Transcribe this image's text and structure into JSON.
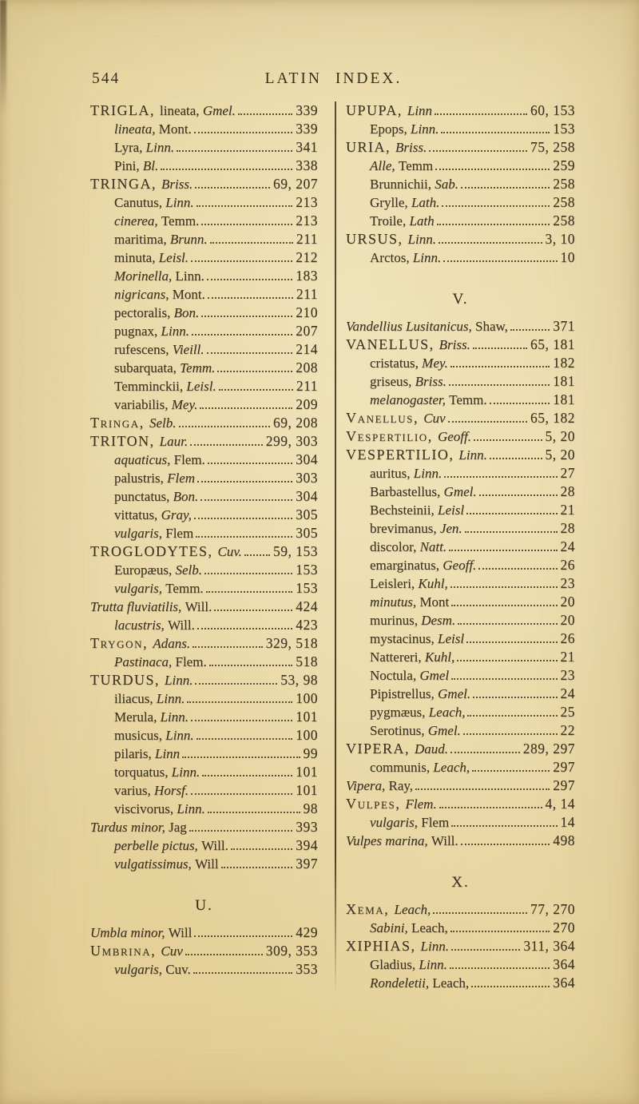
{
  "header": {
    "page_number": "544",
    "title": "LATIN INDEX."
  },
  "colors": {
    "paper": "#e9d8a6",
    "ink": "#3e3322",
    "divider": "#4c3d24"
  },
  "columns": {
    "left": [
      {
        "p": [
          [
            "TRIGLA, ",
            "c"
          ],
          [
            "lineata, ",
            "r"
          ],
          [
            "Gmel.",
            "i"
          ]
        ],
        "g": "339",
        "y": 0
      },
      {
        "p": [
          [
            "lineata, ",
            "i"
          ],
          [
            "Mont.",
            "r"
          ]
        ],
        "g": "339",
        "y": 1
      },
      {
        "p": [
          [
            "Lyra, ",
            "r"
          ],
          [
            "Linn.",
            "i"
          ]
        ],
        "g": "341",
        "y": 1
      },
      {
        "p": [
          [
            "Pini, ",
            "r"
          ],
          [
            "Bl.",
            "i"
          ]
        ],
        "g": "338",
        "y": 1
      },
      {
        "p": [
          [
            "TRINGA, ",
            "c"
          ],
          [
            "Briss.",
            "i"
          ]
        ],
        "g": "69, 207",
        "y": 0
      },
      {
        "p": [
          [
            "Canutus, ",
            "r"
          ],
          [
            "Linn.",
            "i"
          ]
        ],
        "g": "213",
        "y": 1
      },
      {
        "p": [
          [
            "cinerea, ",
            "i"
          ],
          [
            "Temm.",
            "r"
          ]
        ],
        "g": "213",
        "y": 1
      },
      {
        "p": [
          [
            "maritima, ",
            "r"
          ],
          [
            "Brunn.",
            "i"
          ]
        ],
        "g": "211",
        "y": 1
      },
      {
        "p": [
          [
            "minuta, ",
            "r"
          ],
          [
            "Leisl.",
            "i"
          ]
        ],
        "g": "212",
        "y": 1
      },
      {
        "p": [
          [
            "Morinella, ",
            "i"
          ],
          [
            "Linn.",
            "r"
          ]
        ],
        "g": "183",
        "y": 1
      },
      {
        "p": [
          [
            "nigricans, ",
            "i"
          ],
          [
            "Mont.",
            "r"
          ]
        ],
        "g": "211",
        "y": 1
      },
      {
        "p": [
          [
            "pectoralis, ",
            "r"
          ],
          [
            "Bon.",
            "i"
          ]
        ],
        "g": "210",
        "y": 1
      },
      {
        "p": [
          [
            "pugnax, ",
            "r"
          ],
          [
            "Linn.",
            "i"
          ]
        ],
        "g": "207",
        "y": 1
      },
      {
        "p": [
          [
            "rufescens, ",
            "r"
          ],
          [
            "Vieill.",
            "i"
          ]
        ],
        "g": "214",
        "y": 1
      },
      {
        "p": [
          [
            "subarquata, ",
            "r"
          ],
          [
            "Temm.",
            "i"
          ]
        ],
        "g": "208",
        "y": 1
      },
      {
        "p": [
          [
            "Temminckii, ",
            "r"
          ],
          [
            "Leisl.",
            "i"
          ]
        ],
        "g": "211",
        "y": 1
      },
      {
        "p": [
          [
            "variabilis, ",
            "r"
          ],
          [
            "Mey.",
            "i"
          ]
        ],
        "g": "209",
        "y": 1
      },
      {
        "p": [
          [
            "Tringa, ",
            "sc"
          ],
          [
            "Selb.",
            "i"
          ]
        ],
        "g": "69, 208",
        "y": 0
      },
      {
        "p": [
          [
            "TRITON, ",
            "c"
          ],
          [
            "Laur.",
            "i"
          ]
        ],
        "g": "299, 303",
        "y": 0
      },
      {
        "p": [
          [
            "aquaticus, ",
            "i"
          ],
          [
            "Flem.",
            "r"
          ]
        ],
        "g": "304",
        "y": 1
      },
      {
        "p": [
          [
            "palustris, ",
            "r"
          ],
          [
            "Flem",
            "i"
          ]
        ],
        "g": "303",
        "y": 1
      },
      {
        "p": [
          [
            "punctatus, ",
            "r"
          ],
          [
            "Bon.",
            "i"
          ]
        ],
        "g": "304",
        "y": 1
      },
      {
        "p": [
          [
            "vittatus, ",
            "r"
          ],
          [
            "Gray,",
            "i"
          ]
        ],
        "g": "305",
        "y": 1
      },
      {
        "p": [
          [
            "vulgaris, ",
            "i"
          ],
          [
            "Flem",
            "r"
          ]
        ],
        "g": "305",
        "y": 1
      },
      {
        "p": [
          [
            "TROGLODYTES, ",
            "c"
          ],
          [
            "Cuv.",
            "i"
          ]
        ],
        "g": "59, 153",
        "y": 0
      },
      {
        "p": [
          [
            "Europæus, ",
            "r"
          ],
          [
            "Selb.",
            "i"
          ]
        ],
        "g": "153",
        "y": 1
      },
      {
        "p": [
          [
            "vulgaris, ",
            "i"
          ],
          [
            "Temm.",
            "r"
          ]
        ],
        "g": "153",
        "y": 1
      },
      {
        "p": [
          [
            "Trutta fluviatilis, ",
            "i"
          ],
          [
            "Will.",
            "r"
          ]
        ],
        "g": "424",
        "y": 0
      },
      {
        "p": [
          [
            "lacustris, ",
            "i"
          ],
          [
            "Will.",
            "r"
          ]
        ],
        "g": "423",
        "y": 1
      },
      {
        "p": [
          [
            "Trygon, ",
            "sc"
          ],
          [
            "Adans.",
            "i"
          ]
        ],
        "g": "329, 518",
        "y": 0
      },
      {
        "p": [
          [
            "Pastinaca, ",
            "i"
          ],
          [
            "Flem.",
            "r"
          ]
        ],
        "g": "518",
        "y": 1
      },
      {
        "p": [
          [
            "TURDUS, ",
            "c"
          ],
          [
            "Linn.",
            "i"
          ]
        ],
        "g": "53, 98",
        "y": 0
      },
      {
        "p": [
          [
            "iliacus, ",
            "r"
          ],
          [
            "Linn.",
            "i"
          ]
        ],
        "g": "100",
        "y": 1
      },
      {
        "p": [
          [
            "Merula, ",
            "r"
          ],
          [
            "Linn.",
            "i"
          ]
        ],
        "g": "101",
        "y": 1
      },
      {
        "p": [
          [
            "musicus, ",
            "r"
          ],
          [
            "Linn.",
            "i"
          ]
        ],
        "g": "100",
        "y": 1
      },
      {
        "p": [
          [
            "pilaris, ",
            "r"
          ],
          [
            "Linn",
            "i"
          ]
        ],
        "g": "99",
        "y": 1
      },
      {
        "p": [
          [
            "torquatus, ",
            "r"
          ],
          [
            "Linn.",
            "i"
          ]
        ],
        "g": "101",
        "y": 1
      },
      {
        "p": [
          [
            "varius, ",
            "r"
          ],
          [
            "Horsf.",
            "i"
          ]
        ],
        "g": "101",
        "y": 1
      },
      {
        "p": [
          [
            "viscivorus, ",
            "r"
          ],
          [
            "Linn.",
            "i"
          ]
        ],
        "g": "98",
        "y": 1
      },
      {
        "p": [
          [
            "Turdus minor, ",
            "i"
          ],
          [
            "Jag",
            "r"
          ]
        ],
        "g": "393",
        "y": 0
      },
      {
        "p": [
          [
            "perbelle pictus, ",
            "i"
          ],
          [
            "Will.",
            "r"
          ]
        ],
        "g": "394",
        "y": 1
      },
      {
        "p": [
          [
            "vulgatissimus, ",
            "i"
          ],
          [
            "Will",
            "r"
          ]
        ],
        "g": "397",
        "y": 1
      },
      {
        "h": "U."
      },
      {
        "p": [
          [
            "Umbla minor, ",
            "i"
          ],
          [
            "Will",
            "r"
          ]
        ],
        "g": "429",
        "y": 0
      },
      {
        "p": [
          [
            "Umbrina, ",
            "sc"
          ],
          [
            "Cuv",
            "i"
          ]
        ],
        "g": "309, 353",
        "y": 0
      },
      {
        "p": [
          [
            "vulgaris, ",
            "i"
          ],
          [
            "Cuv.",
            "r"
          ]
        ],
        "g": "353",
        "y": 1
      }
    ],
    "right": [
      {
        "p": [
          [
            "UPUPA, ",
            "c"
          ],
          [
            "Linn",
            "i"
          ]
        ],
        "g": "60, 153",
        "y": 0
      },
      {
        "p": [
          [
            "Epops, ",
            "r"
          ],
          [
            "Linn.",
            "i"
          ]
        ],
        "g": "153",
        "y": 1
      },
      {
        "p": [
          [
            "URIA, ",
            "c"
          ],
          [
            "Briss.",
            "i"
          ]
        ],
        "g": "75, 258",
        "y": 0
      },
      {
        "p": [
          [
            "Alle, ",
            "i"
          ],
          [
            "Temm",
            "r"
          ]
        ],
        "g": "259",
        "y": 1
      },
      {
        "p": [
          [
            "Brunnichii, ",
            "r"
          ],
          [
            "Sab.",
            "i"
          ]
        ],
        "g": "258",
        "y": 1
      },
      {
        "p": [
          [
            "Grylle, ",
            "r"
          ],
          [
            "Lath.",
            "i"
          ]
        ],
        "g": "258",
        "y": 1
      },
      {
        "p": [
          [
            "Troile, ",
            "r"
          ],
          [
            "Lath",
            "i"
          ]
        ],
        "g": "258",
        "y": 1
      },
      {
        "p": [
          [
            "URSUS, ",
            "c"
          ],
          [
            "Linn.",
            "i"
          ]
        ],
        "g": "3, 10",
        "y": 0
      },
      {
        "p": [
          [
            "Arctos, ",
            "r"
          ],
          [
            "Linn.",
            "i"
          ]
        ],
        "g": "10",
        "y": 1
      },
      {
        "h": "V."
      },
      {
        "p": [
          [
            "Vandellius Lusitanicus, ",
            "i"
          ],
          [
            "Shaw,",
            "r"
          ]
        ],
        "g": "371",
        "y": 0
      },
      {
        "p": [
          [
            "VANELLUS, ",
            "c"
          ],
          [
            "Briss.",
            "i"
          ]
        ],
        "g": "65, 181",
        "y": 0
      },
      {
        "p": [
          [
            "cristatus, ",
            "r"
          ],
          [
            "Mey.",
            "i"
          ]
        ],
        "g": "182",
        "y": 1
      },
      {
        "p": [
          [
            "griseus, ",
            "r"
          ],
          [
            "Briss.",
            "i"
          ]
        ],
        "g": "181",
        "y": 1
      },
      {
        "p": [
          [
            "melanogaster, ",
            "i"
          ],
          [
            "Temm.",
            "r"
          ]
        ],
        "g": "181",
        "y": 1
      },
      {
        "p": [
          [
            "Vanellus, ",
            "sc"
          ],
          [
            "Cuv",
            "i"
          ]
        ],
        "g": "65, 182",
        "y": 0
      },
      {
        "p": [
          [
            "Vespertilio, ",
            "sc"
          ],
          [
            "Geoff.",
            "i"
          ]
        ],
        "g": "5, 20",
        "y": 0
      },
      {
        "p": [
          [
            "VESPERTILIO, ",
            "c"
          ],
          [
            "Linn.",
            "i"
          ]
        ],
        "g": "5, 20",
        "y": 0
      },
      {
        "p": [
          [
            "auritus, ",
            "r"
          ],
          [
            "Linn.",
            "i"
          ]
        ],
        "g": "27",
        "y": 1
      },
      {
        "p": [
          [
            "Barbastellus, ",
            "r"
          ],
          [
            "Gmel.",
            "i"
          ]
        ],
        "g": "28",
        "y": 1
      },
      {
        "p": [
          [
            "Bechsteinii, ",
            "r"
          ],
          [
            "Leisl",
            "i"
          ]
        ],
        "g": "21",
        "y": 1
      },
      {
        "p": [
          [
            "brevimanus, ",
            "r"
          ],
          [
            "Jen.",
            "i"
          ]
        ],
        "g": "28",
        "y": 1
      },
      {
        "p": [
          [
            "discolor, ",
            "r"
          ],
          [
            "Natt.",
            "i"
          ]
        ],
        "g": "24",
        "y": 1
      },
      {
        "p": [
          [
            "emarginatus, ",
            "r"
          ],
          [
            "Geoff.",
            "i"
          ]
        ],
        "g": "26",
        "y": 1
      },
      {
        "p": [
          [
            "Leisleri, ",
            "r"
          ],
          [
            "Kuhl,",
            "i"
          ]
        ],
        "g": "23",
        "y": 1
      },
      {
        "p": [
          [
            "minutus, ",
            "i"
          ],
          [
            "Mont",
            "r"
          ]
        ],
        "g": "20",
        "y": 1
      },
      {
        "p": [
          [
            "murinus, ",
            "r"
          ],
          [
            "Desm.",
            "i"
          ]
        ],
        "g": "20",
        "y": 1
      },
      {
        "p": [
          [
            "mystacinus, ",
            "r"
          ],
          [
            "Leisl",
            "i"
          ]
        ],
        "g": "26",
        "y": 1
      },
      {
        "p": [
          [
            "Nattereri, ",
            "r"
          ],
          [
            "Kuhl,",
            "i"
          ]
        ],
        "g": "21",
        "y": 1
      },
      {
        "p": [
          [
            "Noctula, ",
            "r"
          ],
          [
            "Gmel",
            "i"
          ]
        ],
        "g": "23",
        "y": 1
      },
      {
        "p": [
          [
            "Pipistrellus, ",
            "r"
          ],
          [
            "Gmel.",
            "i"
          ]
        ],
        "g": "24",
        "y": 1
      },
      {
        "p": [
          [
            "pygmæus, ",
            "r"
          ],
          [
            "Leach,",
            "i"
          ]
        ],
        "g": "25",
        "y": 1
      },
      {
        "p": [
          [
            "Serotinus, ",
            "r"
          ],
          [
            "Gmel.",
            "i"
          ]
        ],
        "g": "22",
        "y": 1
      },
      {
        "p": [
          [
            "VIPERA, ",
            "c"
          ],
          [
            "Daud.",
            "i"
          ]
        ],
        "g": "289, 297",
        "y": 0
      },
      {
        "p": [
          [
            "communis, ",
            "r"
          ],
          [
            "Leach,",
            "i"
          ]
        ],
        "g": "297",
        "y": 1
      },
      {
        "p": [
          [
            "Vipera, ",
            "i"
          ],
          [
            "Ray,",
            "r"
          ]
        ],
        "g": "297",
        "y": 0
      },
      {
        "p": [
          [
            "Vulpes, ",
            "sc"
          ],
          [
            "Flem.",
            "i"
          ]
        ],
        "g": "4, 14",
        "y": 0
      },
      {
        "p": [
          [
            "vulgaris, ",
            "i"
          ],
          [
            "Flem",
            "r"
          ]
        ],
        "g": "14",
        "y": 1
      },
      {
        "p": [
          [
            "Vulpes marina, ",
            "i"
          ],
          [
            "Will.",
            "r"
          ]
        ],
        "g": "498",
        "y": 0
      },
      {
        "h": "X."
      },
      {
        "p": [
          [
            "Xema, ",
            "sc"
          ],
          [
            "Leach,",
            "i"
          ]
        ],
        "g": "77, 270",
        "y": 0
      },
      {
        "p": [
          [
            "Sabini, ",
            "i"
          ],
          [
            "Leach,",
            "r"
          ]
        ],
        "g": "270",
        "y": 1
      },
      {
        "p": [
          [
            "XIPHIAS, ",
            "c"
          ],
          [
            "Linn.",
            "i"
          ]
        ],
        "g": "311, 364",
        "y": 0
      },
      {
        "p": [
          [
            "Gladius, ",
            "r"
          ],
          [
            "Linn.",
            "i"
          ]
        ],
        "g": "364",
        "y": 1
      },
      {
        "p": [
          [
            "Rondeletii, ",
            "i"
          ],
          [
            "Leach,",
            "r"
          ]
        ],
        "g": "364",
        "y": 1
      }
    ]
  }
}
